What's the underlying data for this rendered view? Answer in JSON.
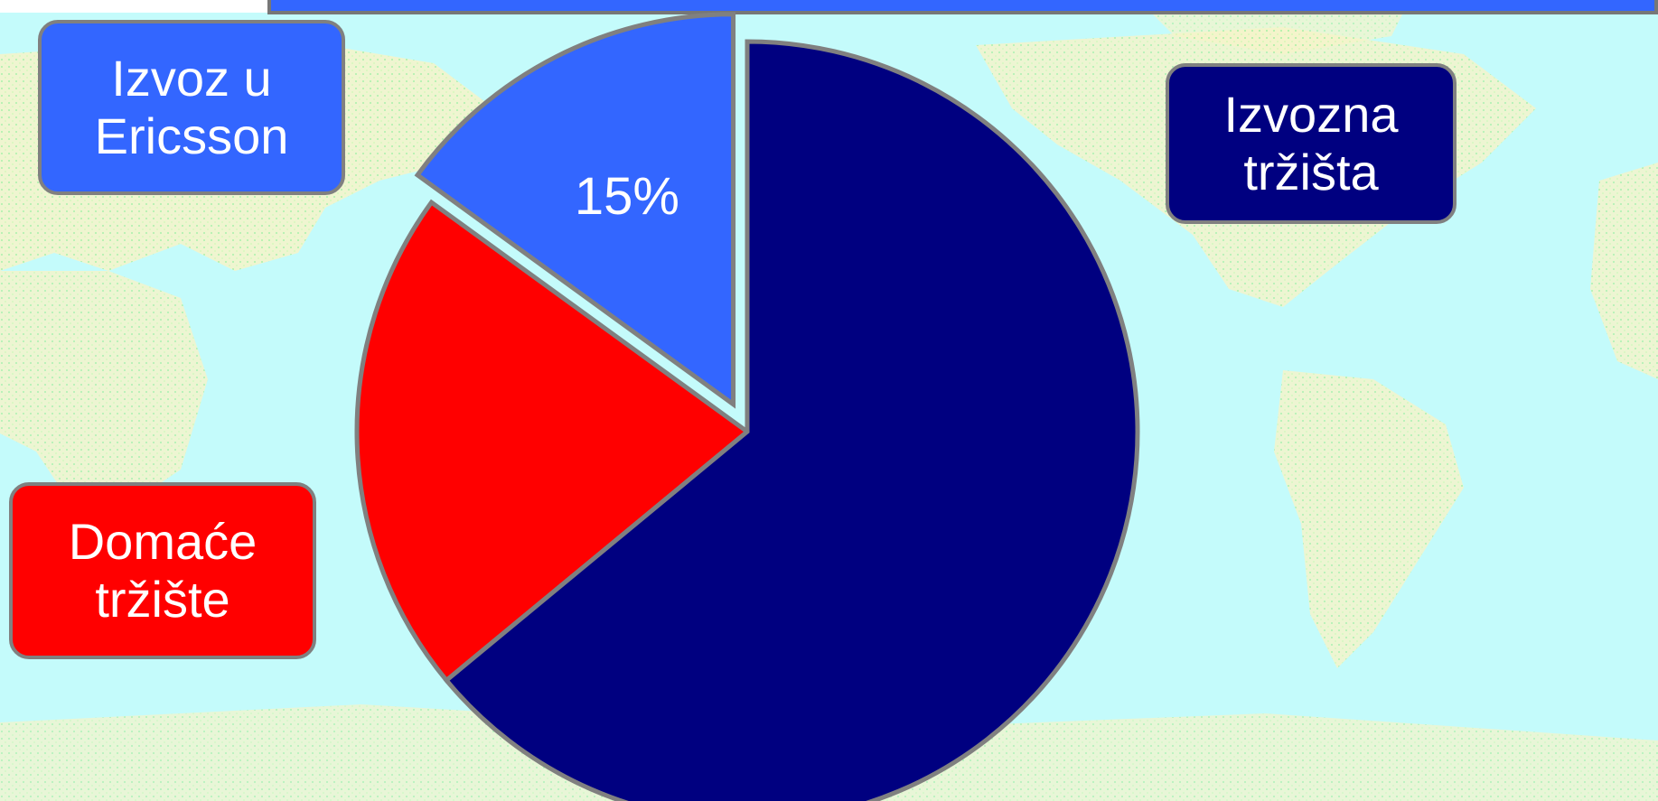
{
  "colors": {
    "ocean": "#c4fbfb",
    "land": "#f7f4c8",
    "land_dots": "#b8f0a8",
    "banner": "#3366ff",
    "border": "#808080"
  },
  "chart_data": {
    "type": "pie",
    "title": "",
    "start_angle_deg": 0,
    "direction": "counterclockwise",
    "slices": [
      {
        "label": "Izvoz u\nEricsson",
        "value": 15,
        "color": "#3366ff",
        "exploded": true,
        "data_label": "15%"
      },
      {
        "label": "Domaće\ntržište",
        "value": 21,
        "color": "#ff0000",
        "exploded": false,
        "data_label": ""
      },
      {
        "label": "Izvozna\ntržišta",
        "value": 64,
        "color": "#000080",
        "exploded": false,
        "data_label": ""
      }
    ]
  },
  "legend": {
    "ericsson": "Izvoz u\nEricsson",
    "export": "Izvozna\ntržišta",
    "domestic": "Domaće\ntržište"
  }
}
